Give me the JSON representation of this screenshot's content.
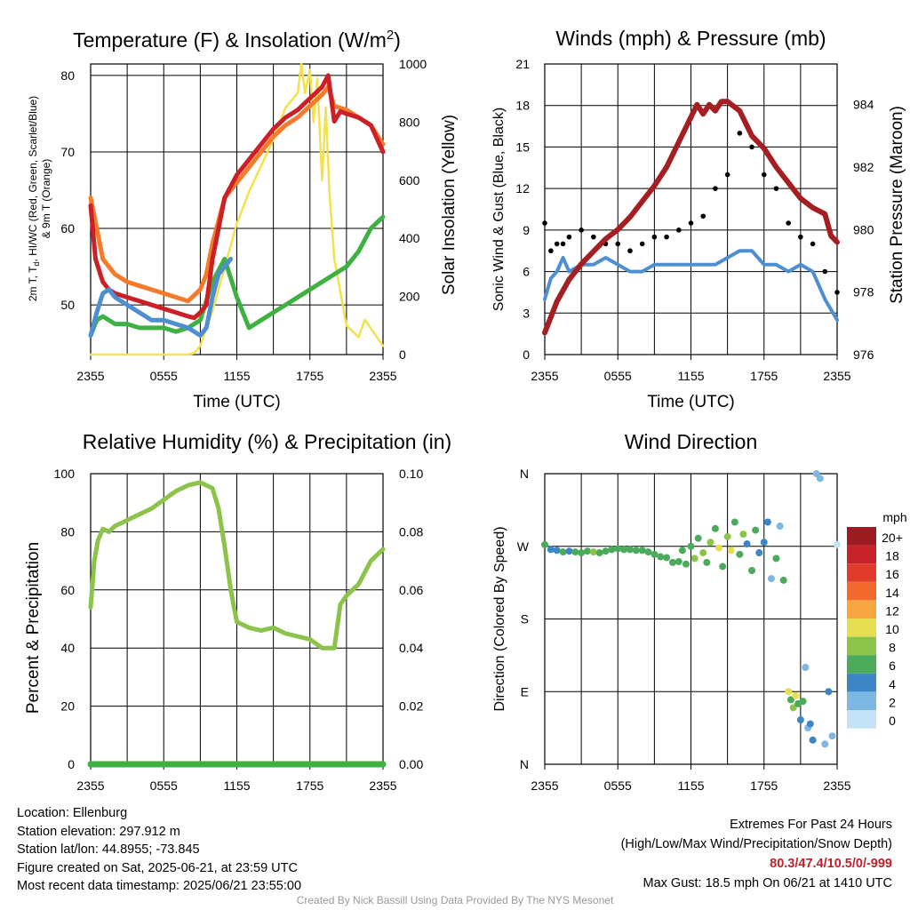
{
  "chart_data": [
    {
      "type": "line",
      "title": "Temperature (F) & Insolation (W/m2)",
      "title_main": "Temperature (F) & Insolation (W/m",
      "title_sup": "2",
      "title_end": ")",
      "xlabel": "Time (UTC)",
      "ylabel_left_line1": "2m T, T",
      "ylabel_left_sub": "d",
      "ylabel_left_line1_end": ", HI/WC (Red, Green, Scarlet/Blue)",
      "ylabel_left_line2": "& 9m T (Orange)",
      "ylabel_right": "Solar Insolation (Yellow)",
      "x_ticks": [
        "2355",
        "0555",
        "1155",
        "1755",
        "2355"
      ],
      "ylim_left": [
        43.5,
        81.5
      ],
      "y_ticks_left": [
        50,
        60,
        70,
        80
      ],
      "ylim_right": [
        0,
        1000
      ],
      "y_ticks_right": [
        0,
        200,
        400,
        600,
        800,
        1000
      ],
      "series": [
        {
          "name": "2m T",
          "color": "#cc2027",
          "axis": "left",
          "x": [
            0,
            0.4,
            1,
            1.5,
            2,
            3,
            4,
            5,
            6,
            7,
            8,
            8.5,
            9,
            9.5,
            10,
            11,
            12,
            13,
            14,
            15,
            16,
            17,
            18,
            19,
            19.5,
            20,
            20.5,
            21,
            22,
            23,
            24
          ],
          "y": [
            63,
            56,
            53,
            52,
            51.5,
            51,
            50.5,
            50,
            49.5,
            49,
            48.5,
            48.3,
            49,
            50,
            56,
            64,
            67,
            69,
            71,
            73,
            74.5,
            75.5,
            77,
            78.5,
            80,
            74,
            75.3,
            75,
            74.5,
            73.5,
            70
          ]
        },
        {
          "name": "9m T",
          "color": "#f47b2b",
          "axis": "left",
          "x": [
            0,
            0.5,
            1,
            2,
            3,
            4,
            5,
            6,
            7,
            8,
            9,
            9.5,
            10,
            11,
            12,
            13,
            14,
            15,
            16,
            17,
            18,
            19,
            19.5,
            20,
            21,
            22,
            23,
            24
          ],
          "y": [
            64,
            60,
            56,
            54,
            53,
            52.5,
            52,
            51.5,
            51,
            50.5,
            52,
            54,
            58,
            64,
            66,
            68,
            70,
            72,
            73.5,
            74.5,
            76,
            77.5,
            78.5,
            76,
            75.5,
            74.5,
            73.5,
            71
          ]
        },
        {
          "name": "Td",
          "color": "#3db142",
          "axis": "left",
          "x": [
            0,
            0.5,
            1,
            2,
            3,
            4,
            5,
            6,
            7,
            8,
            9,
            10,
            11,
            12,
            12.5,
            13,
            14,
            15,
            16,
            17,
            18,
            19,
            20,
            21,
            22,
            23,
            24
          ],
          "y": [
            46,
            48,
            48.5,
            47.5,
            47.5,
            47,
            47,
            47,
            46.5,
            47,
            48,
            53,
            56,
            51,
            49,
            47,
            48,
            49,
            50,
            51,
            52,
            53,
            54,
            55,
            57,
            60,
            61.5
          ]
        },
        {
          "name": "HI/WC",
          "color": "#4d8fd0",
          "axis": "left",
          "x": [
            0,
            0.5,
            1,
            1.5,
            2,
            3,
            4,
            5,
            6,
            7,
            8,
            8.5,
            9,
            9.5,
            10,
            10.5,
            11,
            11.5
          ],
          "y": [
            46,
            49,
            51.5,
            52,
            51,
            50,
            49,
            48,
            48,
            47.5,
            47,
            46.5,
            46,
            47,
            51,
            54,
            55,
            56
          ]
        },
        {
          "name": "Solar Insolation",
          "color": "#f5e14a",
          "axis": "right",
          "x": [
            0,
            1,
            2,
            3,
            4,
            5,
            6,
            7,
            8,
            8.5,
            9,
            10,
            11,
            12,
            13,
            14,
            15,
            16,
            17,
            17.3,
            17.6,
            18,
            18.3,
            18.6,
            19,
            19.3,
            19.6,
            20,
            21,
            22,
            22.5,
            23,
            24
          ],
          "y": [
            0,
            0,
            0,
            0,
            0,
            0,
            0,
            0,
            0,
            5,
            30,
            150,
            300,
            450,
            560,
            650,
            740,
            850,
            900,
            1000,
            900,
            980,
            800,
            950,
            600,
            850,
            560,
            330,
            100,
            60,
            120,
            90,
            30
          ]
        }
      ]
    },
    {
      "type": "line",
      "title": "Winds (mph) & Pressure (mb)",
      "xlabel": "Time (UTC)",
      "ylabel": "Sonic Wind & Gust (Blue, Black)",
      "ylabel_right": "Station Pressure (Maroon)",
      "x_ticks": [
        "2355",
        "0555",
        "1155",
        "1755",
        "2355"
      ],
      "ylim_left": [
        0,
        21
      ],
      "y_ticks_left": [
        0,
        3,
        6,
        9,
        12,
        15,
        18,
        21
      ],
      "ylim_right": [
        976,
        985.3
      ],
      "y_ticks_right": [
        976,
        978,
        980,
        982,
        984
      ],
      "series": [
        {
          "name": "Sonic Wind",
          "color": "#4d8fd0",
          "axis": "left",
          "x": [
            0,
            0.5,
            1,
            1.5,
            2,
            3,
            4,
            5,
            6,
            7,
            8,
            9,
            10,
            11,
            12,
            13,
            14,
            15,
            16,
            17,
            18,
            19,
            20,
            21,
            22,
            23,
            24
          ],
          "y": [
            4,
            5.5,
            6,
            7,
            6,
            6.5,
            6.5,
            7,
            6.5,
            6,
            6,
            6.5,
            6.5,
            6.5,
            6.5,
            6.5,
            6.5,
            7,
            7.5,
            7.5,
            6.5,
            6.5,
            6,
            6.5,
            6,
            4,
            2.5
          ]
        },
        {
          "name": "Gust",
          "color": "#000000",
          "axis": "left",
          "x": [
            0,
            0.5,
            1,
            1.5,
            2,
            3,
            4,
            5,
            6,
            7,
            8,
            9,
            10,
            11,
            12,
            13,
            14,
            15,
            16,
            17,
            18,
            19,
            20,
            21,
            22,
            23,
            24
          ],
          "y": [
            9.5,
            7.5,
            8,
            8,
            8.5,
            9,
            8.5,
            8,
            8,
            7.5,
            8,
            8.5,
            8.5,
            9,
            9.5,
            10,
            12,
            13,
            16,
            15,
            13,
            12,
            9.5,
            8.5,
            8,
            6,
            4.5
          ]
        },
        {
          "name": "Station Pressure",
          "color": "#a41e22",
          "axis": "right",
          "x": [
            0,
            1,
            2,
            3,
            4,
            5,
            6,
            7,
            8,
            9,
            10,
            11,
            12,
            12.5,
            13,
            13.5,
            14,
            14.5,
            15,
            16,
            17,
            18,
            19,
            20,
            21,
            22,
            23,
            23.5,
            24
          ],
          "y": [
            976.7,
            977.7,
            978.4,
            978.9,
            979.3,
            979.7,
            980,
            980.4,
            980.9,
            981.4,
            982,
            982.8,
            983.6,
            984,
            983.7,
            984,
            983.8,
            984.1,
            984.1,
            983.8,
            983,
            982.6,
            982,
            981.5,
            981,
            980.7,
            980.5,
            979.8,
            979.6
          ]
        }
      ]
    },
    {
      "type": "line",
      "title": "Relative Humidity (%) & Precipitation (in)",
      "ylabel": "Percent & Precipitation",
      "x_ticks": [
        "2355",
        "0555",
        "1155",
        "1755",
        "2355"
      ],
      "ylim_left": [
        0,
        100
      ],
      "y_ticks_left": [
        0,
        20,
        40,
        60,
        80,
        100
      ],
      "ylim_right": [
        0,
        0.1
      ],
      "y_ticks_right": [
        "0.00",
        "0.02",
        "0.04",
        "0.06",
        "0.08",
        "0.10"
      ],
      "series": [
        {
          "name": "Relative Humidity",
          "color": "#8cc34a",
          "axis": "left",
          "x": [
            0,
            0.3,
            0.6,
            1,
            1.5,
            2,
            3,
            4,
            5,
            6,
            7,
            8,
            9,
            9.5,
            10,
            10.5,
            11,
            11.5,
            12,
            13,
            14,
            15,
            16,
            17,
            18,
            19,
            20,
            20.5,
            21,
            22,
            23,
            24
          ],
          "y": [
            54,
            70,
            77,
            81,
            80,
            82,
            84,
            86,
            88,
            91,
            94,
            96,
            97,
            96,
            95,
            88,
            75,
            60,
            49,
            47,
            46,
            47,
            45,
            44,
            43,
            40,
            40,
            55,
            58,
            62,
            70,
            74
          ]
        },
        {
          "name": "Precipitation",
          "color": "#3db142",
          "axis": "left",
          "x": [
            0,
            24
          ],
          "y": [
            0,
            0
          ]
        }
      ]
    },
    {
      "type": "scatter",
      "title": "Wind Direction",
      "ylabel": "Direction (Colored By Speed)",
      "x_ticks": [
        "2355",
        "0555",
        "1155",
        "1755",
        "2355"
      ],
      "y_ticks": [
        "N",
        "E",
        "S",
        "W",
        "N"
      ],
      "ylim": [
        0,
        360
      ],
      "legend_title": "mph",
      "legend_labels": [
        "20+",
        "18",
        "16",
        "14",
        "12",
        "10",
        "8",
        "6",
        "4",
        "2",
        "0"
      ],
      "legend_colors": [
        "#9b1b20",
        "#c8232a",
        "#e13b2c",
        "#f26a2d",
        "#f7a541",
        "#e6df52",
        "#8cc34a",
        "#4caa5b",
        "#3c86c6",
        "#7db7e3",
        "#c4e3f6"
      ],
      "points": [
        {
          "x": 0,
          "y": 272,
          "s": 5
        },
        {
          "x": 0.5,
          "y": 266,
          "s": 4
        },
        {
          "x": 1,
          "y": 265,
          "s": 4
        },
        {
          "x": 1.5,
          "y": 263,
          "s": 6
        },
        {
          "x": 2,
          "y": 264,
          "s": 4
        },
        {
          "x": 2.5,
          "y": 263,
          "s": 6
        },
        {
          "x": 3,
          "y": 262,
          "s": 6
        },
        {
          "x": 3.5,
          "y": 264,
          "s": 5
        },
        {
          "x": 4,
          "y": 263,
          "s": 7
        },
        {
          "x": 4.5,
          "y": 262,
          "s": 6
        },
        {
          "x": 5,
          "y": 264,
          "s": 5
        },
        {
          "x": 5.5,
          "y": 266,
          "s": 6
        },
        {
          "x": 6,
          "y": 267,
          "s": 6
        },
        {
          "x": 6.5,
          "y": 266,
          "s": 5
        },
        {
          "x": 7,
          "y": 266,
          "s": 6
        },
        {
          "x": 7.5,
          "y": 265,
          "s": 6
        },
        {
          "x": 8,
          "y": 265,
          "s": 5
        },
        {
          "x": 8.5,
          "y": 263,
          "s": 6
        },
        {
          "x": 9,
          "y": 260,
          "s": 6
        },
        {
          "x": 9.5,
          "y": 257,
          "s": 5
        },
        {
          "x": 10,
          "y": 256,
          "s": 6
        },
        {
          "x": 10.5,
          "y": 250,
          "s": 6
        },
        {
          "x": 11,
          "y": 251,
          "s": 6
        },
        {
          "x": 11.3,
          "y": 265,
          "s": 5
        },
        {
          "x": 11.6,
          "y": 248,
          "s": 6
        },
        {
          "x": 12,
          "y": 270,
          "s": 6
        },
        {
          "x": 12.3,
          "y": 255,
          "s": 7
        },
        {
          "x": 12.6,
          "y": 280,
          "s": 6
        },
        {
          "x": 13,
          "y": 262,
          "s": 7
        },
        {
          "x": 13.3,
          "y": 250,
          "s": 6
        },
        {
          "x": 13.6,
          "y": 275,
          "s": 8
        },
        {
          "x": 14,
          "y": 292,
          "s": 5
        },
        {
          "x": 14.3,
          "y": 268,
          "s": 9
        },
        {
          "x": 14.6,
          "y": 245,
          "s": 6
        },
        {
          "x": 15,
          "y": 282,
          "s": 7
        },
        {
          "x": 15.3,
          "y": 265,
          "s": 10
        },
        {
          "x": 15.6,
          "y": 300,
          "s": 5
        },
        {
          "x": 16,
          "y": 260,
          "s": 6
        },
        {
          "x": 16.3,
          "y": 285,
          "s": 8
        },
        {
          "x": 16.6,
          "y": 273,
          "s": 4
        },
        {
          "x": 17,
          "y": 240,
          "s": 5
        },
        {
          "x": 17.3,
          "y": 290,
          "s": 6
        },
        {
          "x": 17.6,
          "y": 262,
          "s": 3
        },
        {
          "x": 18,
          "y": 275,
          "s": 4
        },
        {
          "x": 18.3,
          "y": 300,
          "s": 3
        },
        {
          "x": 18.6,
          "y": 230,
          "s": 2
        },
        {
          "x": 19,
          "y": 255,
          "s": 5
        },
        {
          "x": 19.3,
          "y": 295,
          "s": 2
        },
        {
          "x": 19.6,
          "y": 228,
          "s": 5
        },
        {
          "x": 20,
          "y": 90,
          "s": 10
        },
        {
          "x": 20.2,
          "y": 80,
          "s": 6
        },
        {
          "x": 20.4,
          "y": 70,
          "s": 8
        },
        {
          "x": 20.6,
          "y": 85,
          "s": 9
        },
        {
          "x": 20.8,
          "y": 75,
          "s": 6
        },
        {
          "x": 21,
          "y": 55,
          "s": 4
        },
        {
          "x": 21.2,
          "y": 78,
          "s": 6
        },
        {
          "x": 21.4,
          "y": 120,
          "s": 1
        },
        {
          "x": 21.6,
          "y": 45,
          "s": 2
        },
        {
          "x": 21.8,
          "y": 50,
          "s": 4
        },
        {
          "x": 22,
          "y": 30,
          "s": 3
        },
        {
          "x": 22.3,
          "y": 360,
          "s": 2
        },
        {
          "x": 22.6,
          "y": 354,
          "s": 2
        },
        {
          "x": 23,
          "y": 25,
          "s": 1
        },
        {
          "x": 23.3,
          "y": 90,
          "s": 4
        },
        {
          "x": 23.6,
          "y": 35,
          "s": 2
        },
        {
          "x": 24,
          "y": 272,
          "s": 0
        }
      ]
    }
  ],
  "info": {
    "location": "Location: Ellenburg",
    "elevation": "Station elevation: 297.912 m",
    "latlon": "Station lat/lon: 44.8955; -73.845",
    "created": "Figure created on Sat, 2025-06-21, at 23:59 UTC",
    "recent": "Most recent data timestamp: 2025/06/21 23:55:00"
  },
  "extremes": {
    "title": "Extremes For Past 24 Hours",
    "subtitle": "(High/Low/Max Wind/Precipitation/Snow Depth)",
    "values": "80.3/47.4/10.5/0/-999",
    "gust": "Max Gust: 18.5 mph On 06/21 at 1410 UTC"
  },
  "credit": "Created By Nick Bassill Using Data Provided By The NYS Mesonet"
}
